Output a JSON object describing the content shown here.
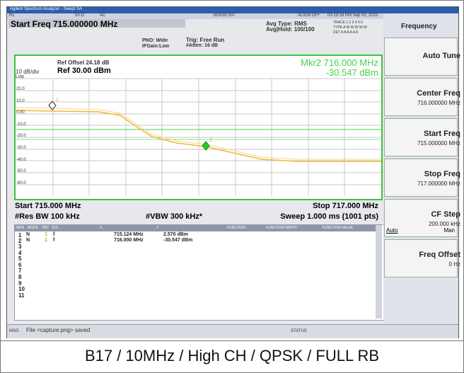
{
  "window_title": "Agilent Spectrum Analyzer - Swept SA",
  "status_bar": {
    "rl": "RL",
    "impedance": "50 Ω",
    "coupling": "AC",
    "sense": "SENSE:INT",
    "align": "ALIGN OFF",
    "datetime": "03:19:16 PM Sep 05, 2023"
  },
  "header": {
    "start_freq": "Start Freq 715.000000 MHz",
    "pno": "PNO: Wide",
    "if_gain": "IFGain:Low",
    "trig": "Trig: Free Run",
    "atten": "#Atten: 16 dB",
    "avg_type": "Avg Type: RMS",
    "avg_hold": "Avg|Hold: 100/100",
    "trace": "TRACE 1 2 3 4 5 6",
    "type": "TYPE A W W W W W",
    "det": "DET A A A A A A"
  },
  "graph": {
    "ref_offset": "Ref Offset 24.18 dB",
    "scale": "10 dB/div",
    "log": "Log",
    "ref_level": "Ref 30.00 dBm",
    "marker_freq": "Mkr2 716.000 MHz",
    "marker_amp": "-30.547 dBm",
    "y_labels": [
      "20.0",
      "10.0",
      "0.00",
      "-10.0",
      "-20.0",
      "-30.0",
      "-40.0",
      "-50.0",
      "-60.0"
    ],
    "marker_labels": [
      "1",
      "2"
    ],
    "start": "Start 715.000 MHz",
    "stop": "Stop 717.000 MHz",
    "rbw": "#Res BW 100 kHz",
    "vbw": "#VBW 300 kHz*",
    "sweep": "Sweep  1.000 ms (1001 pts)"
  },
  "marker_table": {
    "headers": [
      "MKR",
      "MODE",
      "TRC",
      "SCL",
      "X",
      "Y",
      "FUNCTION",
      "FUNCTION WIDTH",
      "FUNCTION VALUE"
    ],
    "rows": [
      [
        "1",
        "N",
        "1",
        "f",
        "715.124 MHz",
        "2.570 dBm"
      ],
      [
        "2",
        "N",
        "1",
        "f",
        "716.000 MHz",
        "-30.547 dBm"
      ]
    ],
    "empty_rows": [
      "3",
      "4",
      "5",
      "6",
      "7",
      "8",
      "9",
      "10",
      "11"
    ]
  },
  "message": {
    "label": "MSG",
    "text": "File <capture.png> saved",
    "status": "STATUS"
  },
  "softkeys": {
    "title": "Frequency",
    "keys": [
      {
        "label": "Auto Tune"
      },
      {
        "label": "Center Freq",
        "value": "716.000000 MHz"
      },
      {
        "label": "Start Freq",
        "value": "715.000000 MHz"
      },
      {
        "label": "Stop Freq",
        "value": "717.000000 MHz"
      },
      {
        "label": "CF Step",
        "value": "200.000 kHz",
        "options": [
          "Auto",
          "Man"
        ]
      },
      {
        "label": "Freq Offset",
        "value": "0 Hz"
      }
    ]
  },
  "caption": "B17 / 10MHz / High CH / QPSK / FULL RB"
}
